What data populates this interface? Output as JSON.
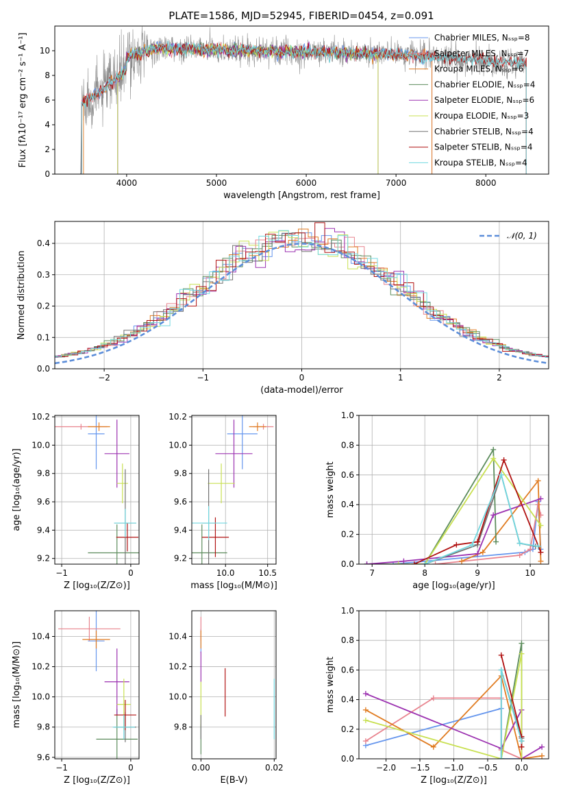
{
  "figure_title": "PLATE=1586, MJD=52945, FIBERID=0454, z=0.091",
  "chart_data": [
    {
      "id": "spectrum",
      "type": "line",
      "xlabel": "wavelength [Angstrom, rest frame]",
      "ylabel": "Flux [fλ10⁻¹⁷ erg cm⁻² s⁻¹ A⁻¹]",
      "xlim": [
        3200,
        8700
      ],
      "ylim": [
        0,
        12
      ],
      "xticks": [
        4000,
        5000,
        6000,
        7000,
        8000
      ],
      "yticks": [
        0,
        2,
        4,
        6,
        8,
        10
      ],
      "grid": false,
      "legend_position": "upper-right",
      "data_range": [
        3470,
        8450
      ],
      "series": [
        {
          "name": "Chabrier MILES, Nₛₛₚ=8",
          "color": "#6495ED",
          "model_start": 3500,
          "model_end": 7400
        },
        {
          "name": "Salpeter MILES, Nₛₛₚ=7",
          "color": "#E8828D",
          "model_start": 3500,
          "model_end": 7400
        },
        {
          "name": "Kroupa MILES, Nₛₛₚ=6",
          "color": "#E07B20",
          "model_start": 3520,
          "model_end": 7400
        },
        {
          "name": "Chabrier ELODIE, Nₛₛₚ=4",
          "color": "#5C8C5C",
          "model_start": 3900,
          "model_end": 6800
        },
        {
          "name": "Salpeter ELODIE, Nₛₛₚ=6",
          "color": "#9B30B0",
          "model_start": 3900,
          "model_end": 6800
        },
        {
          "name": "Kroupa ELODIE, Nₛₛₚ=3",
          "color": "#C8E050",
          "model_start": 3900,
          "model_end": 6800
        },
        {
          "name": "Chabrier STELIB, Nₛₛₚ=4",
          "color": "#707070",
          "model_start": 3470,
          "model_end": 8450
        },
        {
          "name": "Salpeter STELIB, Nₛₛₚ=4",
          "color": "#B01010",
          "model_start": 3500,
          "model_end": 8450
        },
        {
          "name": "Kroupa STELIB, Nₛₛₚ=4",
          "color": "#70D8E0",
          "model_start": 3500,
          "model_end": 8450
        }
      ]
    },
    {
      "id": "residuals",
      "type": "bar",
      "xlabel": "(data-model)/error",
      "ylabel": "Normed distribution",
      "xlim": [
        -2.5,
        2.5
      ],
      "ylim": [
        0,
        0.47
      ],
      "xticks": [
        -2,
        -1,
        0,
        1,
        2
      ],
      "yticks": [
        0.0,
        0.1,
        0.2,
        0.3,
        0.4
      ],
      "grid": true,
      "legend_position": "upper-right",
      "gaussian_label": "𝒩(0, 1)",
      "gaussian_color": "#5B8DD9",
      "bin_width": 0.1
    },
    {
      "id": "age-vs-Z",
      "type": "scatter",
      "xlabel": "Z [log₁₀(Z/Z⊙)]",
      "ylabel": "age  [log₁₀(age/yr)]",
      "xlim": [
        -1.1,
        0.12
      ],
      "ylim": [
        9.16,
        10.21
      ],
      "xticks": [
        -1,
        0
      ],
      "yticks": [
        9.2,
        9.4,
        9.6,
        9.8,
        10.0,
        10.2
      ],
      "grid": true,
      "points": [
        {
          "color": "#6495ED",
          "x": -0.5,
          "xerr": 0.12,
          "y": 10.08,
          "yerr": 0.25
        },
        {
          "color": "#E8828D",
          "x": -0.72,
          "xerr": 0.38,
          "y": 10.13,
          "yerr": 0.02
        },
        {
          "color": "#E07B20",
          "x": -0.46,
          "xerr": 0.16,
          "y": 10.13,
          "yerr": 0.03
        },
        {
          "color": "#5C8C5C",
          "x": -0.2,
          "xerr": 0.42,
          "y": 9.24,
          "yerr": 0.2
        },
        {
          "color": "#9B30B0",
          "x": -0.2,
          "xerr": 0.18,
          "y": 9.94,
          "yerr": 0.24
        },
        {
          "color": "#C8E050",
          "x": -0.12,
          "xerr": 0.08,
          "y": 9.73,
          "yerr": 0.14
        },
        {
          "color": "#707070",
          "x": -0.08,
          "xerr": 0.16,
          "y": 9.45,
          "yerr": 0.38
        },
        {
          "color": "#B01010",
          "x": -0.05,
          "xerr": 0.16,
          "y": 9.35,
          "yerr": 0.1
        },
        {
          "color": "#70D8E0",
          "x": -0.08,
          "xerr": 0.16,
          "y": 9.45,
          "yerr": 0.1
        }
      ]
    },
    {
      "id": "age-vs-mass",
      "type": "scatter",
      "xlabel": "mass [log₁₀(M/M⊙)]",
      "ylabel": "",
      "xlim": [
        9.6,
        10.6
      ],
      "ylim": [
        9.16,
        10.21
      ],
      "xticks": [
        10.0,
        10.5
      ],
      "yticks": [
        9.2,
        9.4,
        9.6,
        9.8,
        10.0,
        10.2
      ],
      "grid": true,
      "points": [
        {
          "color": "#6495ED",
          "x": 10.2,
          "xerr": 0.18,
          "y": 10.08,
          "yerr": 0.25
        },
        {
          "color": "#E8828D",
          "x": 10.45,
          "xerr": 0.12,
          "y": 10.13,
          "yerr": 0.02
        },
        {
          "color": "#E07B20",
          "x": 10.38,
          "xerr": 0.1,
          "y": 10.13,
          "yerr": 0.03
        },
        {
          "color": "#5C8C5C",
          "x": 9.72,
          "xerr": 0.3,
          "y": 9.24,
          "yerr": 0.2
        },
        {
          "color": "#9B30B0",
          "x": 10.1,
          "xerr": 0.22,
          "y": 9.94,
          "yerr": 0.24
        },
        {
          "color": "#C8E050",
          "x": 9.95,
          "xerr": 0.16,
          "y": 9.73,
          "yerr": 0.14
        },
        {
          "color": "#707070",
          "x": 9.8,
          "xerr": 0.08,
          "y": 9.45,
          "yerr": 0.38
        },
        {
          "color": "#B01010",
          "x": 9.88,
          "xerr": 0.16,
          "y": 9.35,
          "yerr": 0.14
        },
        {
          "color": "#70D8E0",
          "x": 9.8,
          "xerr": 0.22,
          "y": 9.45,
          "yerr": 0.12
        }
      ]
    },
    {
      "id": "weight-vs-age",
      "type": "line",
      "xlabel": "age  [log₁₀(age/yr)]",
      "ylabel": "mass weight",
      "xlim": [
        6.75,
        10.35
      ],
      "ylim": [
        0,
        1
      ],
      "xticks": [
        7,
        8,
        9,
        10
      ],
      "yticks": [
        0.0,
        0.2,
        0.4,
        0.6,
        0.8,
        1.0
      ],
      "grid": true,
      "series": [
        {
          "color": "#6495ED",
          "x": [
            7.4,
            9.9,
            10.05,
            10.15,
            10.2
          ],
          "y": [
            0.0,
            0.08,
            0.1,
            0.42,
            0.1
          ]
        },
        {
          "color": "#E8828D",
          "x": [
            8.2,
            9.8,
            10.0,
            10.15,
            10.2
          ],
          "y": [
            0.0,
            0.06,
            0.1,
            0.4,
            0.33
          ]
        },
        {
          "color": "#E07B20",
          "x": [
            8.7,
            9.1,
            10.15,
            10.2
          ],
          "y": [
            0.02,
            0.08,
            0.56,
            0.02
          ]
        },
        {
          "color": "#5C8C5C",
          "x": [
            6.9,
            8.0,
            9.3,
            9.35
          ],
          "y": [
            0.0,
            0.0,
            0.77,
            0.15
          ]
        },
        {
          "color": "#9B30B0",
          "x": [
            6.9,
            7.6,
            9.0,
            9.3,
            10.2
          ],
          "y": [
            0.0,
            0.02,
            0.07,
            0.33,
            0.44
          ]
        },
        {
          "color": "#C8E050",
          "x": [
            7.5,
            8.0,
            9.3,
            10.2
          ],
          "y": [
            0.0,
            0.0,
            0.71,
            0.26
          ]
        },
        {
          "color": "#707070",
          "x": [
            8.0,
            9.0,
            9.45,
            9.8,
            10.1
          ],
          "y": [
            0.0,
            0.13,
            0.6,
            0.14,
            0.12
          ]
        },
        {
          "color": "#B01010",
          "x": [
            7.8,
            8.6,
            9.0,
            9.5,
            10.2
          ],
          "y": [
            0.0,
            0.13,
            0.15,
            0.7,
            0.08
          ]
        },
        {
          "color": "#70D8E0",
          "x": [
            8.0,
            8.9,
            9.45,
            9.8,
            10.15
          ],
          "y": [
            0.0,
            0.13,
            0.6,
            0.14,
            0.12
          ]
        }
      ]
    },
    {
      "id": "mass-vs-Z",
      "type": "scatter",
      "xlabel": "Z [log₁₀(Z/Z⊙)]",
      "ylabel": "mass [log₁₀(M/M⊙)]",
      "xlim": [
        -1.1,
        0.12
      ],
      "ylim": [
        9.59,
        10.57
      ],
      "xticks": [
        -1,
        0
      ],
      "yticks": [
        9.6,
        9.8,
        10.0,
        10.2,
        10.4
      ],
      "grid": true,
      "points": [
        {
          "color": "#6495ED",
          "x": -0.5,
          "xerr": 0.12,
          "y": 10.37,
          "yerr": 0.2
        },
        {
          "color": "#E8828D",
          "x": -0.6,
          "xerr": 0.45,
          "y": 10.45,
          "yerr": 0.08
        },
        {
          "color": "#E07B20",
          "x": -0.5,
          "xerr": 0.2,
          "y": 10.38,
          "yerr": 0.06
        },
        {
          "color": "#5C8C5C",
          "x": -0.2,
          "xerr": 0.3,
          "y": 9.72,
          "yerr": 0.2
        },
        {
          "color": "#9B30B0",
          "x": -0.2,
          "xerr": 0.18,
          "y": 10.1,
          "yerr": 0.22
        },
        {
          "color": "#C8E050",
          "x": -0.1,
          "xerr": 0.1,
          "y": 9.95,
          "yerr": 0.17
        },
        {
          "color": "#707070",
          "x": -0.08,
          "xerr": 0.16,
          "y": 9.8,
          "yerr": 0.1
        },
        {
          "color": "#B01010",
          "x": -0.08,
          "xerr": 0.16,
          "y": 9.88,
          "yerr": 0.1
        },
        {
          "color": "#70D8E0",
          "x": -0.1,
          "xerr": 0.16,
          "y": 9.8,
          "yerr": 0.08
        }
      ]
    },
    {
      "id": "mass-vs-ebv",
      "type": "scatter",
      "xlabel": "E(B-V)",
      "ylabel": "",
      "xlim": [
        -0.0025,
        0.0205
      ],
      "ylim": [
        9.59,
        10.57
      ],
      "xticks": [
        0.0,
        0.02
      ],
      "yticks": [
        9.8,
        10.0,
        10.2,
        10.4
      ],
      "grid": true,
      "points": [
        {
          "color": "#6495ED",
          "x": 0.0,
          "y": 10.37,
          "yerr": 0.08
        },
        {
          "color": "#E8828D",
          "x": 0.0,
          "y": 10.45,
          "yerr": 0.08
        },
        {
          "color": "#E07B20",
          "x": 0.0,
          "y": 10.38,
          "yerr": 0.06
        },
        {
          "color": "#5C8C5C",
          "x": 0.0,
          "y": 9.72,
          "yerr": 0.1
        },
        {
          "color": "#9B30B0",
          "x": 0.0,
          "y": 10.2,
          "yerr": 0.1
        },
        {
          "color": "#C8E050",
          "x": 0.0,
          "y": 9.95,
          "yerr": 0.15
        },
        {
          "color": "#707070",
          "x": 0.0,
          "y": 9.8,
          "yerr": 0.08
        },
        {
          "color": "#B01010",
          "x": 0.0066,
          "y": 10.03,
          "yerr": 0.16
        },
        {
          "color": "#70D8E0",
          "x": 0.02,
          "y": 9.92,
          "yerr": 0.2
        }
      ]
    },
    {
      "id": "weight-vs-Z",
      "type": "line",
      "xlabel": "Z [log₁₀(Z/Z⊙)]",
      "ylabel": "mass weight",
      "xlim": [
        -2.4,
        0.4
      ],
      "ylim": [
        0,
        1
      ],
      "xticks": [
        -2.0,
        -1.5,
        -1.0,
        -0.5,
        0.0
      ],
      "yticks": [
        0.0,
        0.2,
        0.4,
        0.6,
        0.8,
        1.0
      ],
      "grid": true,
      "series": [
        {
          "color": "#6495ED",
          "x": [
            -2.3,
            -0.3,
            -0.3,
            -0.0
          ],
          "y": [
            0.09,
            0.34,
            0.0,
            0.0
          ]
        },
        {
          "color": "#E8828D",
          "x": [
            -2.3,
            -1.3,
            -0.3,
            -0.3,
            0.0
          ],
          "y": [
            0.12,
            0.41,
            0.41,
            0.06,
            0.0
          ]
        },
        {
          "color": "#E07B20",
          "x": [
            -2.3,
            -1.3,
            -0.3,
            0.0,
            0.3
          ],
          "y": [
            0.33,
            0.08,
            0.56,
            0.0,
            0.02
          ]
        },
        {
          "color": "#5C8C5C",
          "x": [
            -0.3,
            0.0,
            0.0
          ],
          "y": [
            0.0,
            0.78,
            0.12
          ]
        },
        {
          "color": "#9B30B0",
          "x": [
            -2.3,
            -0.3,
            0.0,
            0.0,
            0.3
          ],
          "y": [
            0.44,
            0.07,
            0.33,
            0.0,
            0.08
          ]
        },
        {
          "color": "#C8E050",
          "x": [
            -2.3,
            -0.3,
            0.0,
            0.0
          ],
          "y": [
            0.26,
            0.0,
            0.71,
            0.0
          ]
        },
        {
          "color": "#707070",
          "x": [
            -0.3,
            -0.3,
            0.0
          ],
          "y": [
            0.0,
            0.6,
            0.14
          ]
        },
        {
          "color": "#B01010",
          "x": [
            -0.3,
            0.0,
            0.0
          ],
          "y": [
            0.7,
            0.15,
            0.08
          ]
        },
        {
          "color": "#70D8E0",
          "x": [
            -0.3,
            -0.3,
            0.0
          ],
          "y": [
            0.0,
            0.6,
            0.12
          ]
        }
      ]
    }
  ]
}
